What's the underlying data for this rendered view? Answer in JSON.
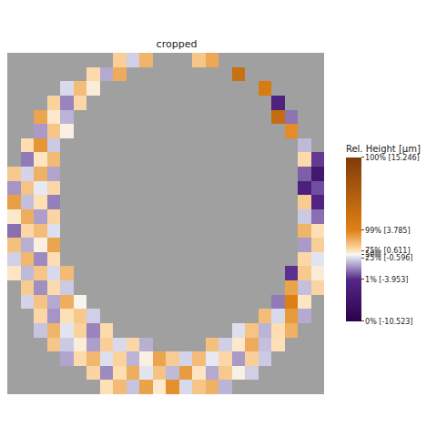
{
  "chart_data": {
    "type": "heatmap",
    "title": "cropped",
    "tick_labels": false,
    "grid": false,
    "xlim": [
      -0.5,
      23.5
    ],
    "ylim": [
      23.5,
      -0.5
    ],
    "cells": [
      [
        null,
        null,
        null,
        null,
        null,
        null,
        null,
        null,
        1.2,
        -0.8,
        2.1,
        null,
        null,
        null,
        1.5,
        2.5,
        null,
        null,
        null,
        null,
        null,
        null,
        null,
        null
      ],
      [
        null,
        null,
        null,
        null,
        null,
        null,
        0.8,
        -1.5,
        2.4,
        null,
        null,
        null,
        null,
        null,
        null,
        null,
        null,
        6.5,
        null,
        null,
        null,
        null,
        null,
        null
      ],
      [
        null,
        null,
        null,
        null,
        -0.6,
        1.8,
        0.3,
        null,
        null,
        null,
        null,
        null,
        null,
        null,
        null,
        null,
        null,
        null,
        null,
        4.8,
        null,
        null,
        null,
        null
      ],
      [
        null,
        null,
        null,
        1.1,
        -2.2,
        0.9,
        null,
        null,
        null,
        null,
        null,
        null,
        null,
        null,
        null,
        null,
        null,
        null,
        null,
        null,
        -4.8,
        null,
        null,
        null
      ],
      [
        null,
        null,
        2.6,
        0.4,
        -1.3,
        null,
        null,
        null,
        null,
        null,
        null,
        null,
        null,
        null,
        null,
        null,
        null,
        null,
        null,
        null,
        7.2,
        -2.5,
        null,
        null
      ],
      [
        null,
        null,
        -1.8,
        1.5,
        0.2,
        null,
        null,
        null,
        null,
        null,
        null,
        null,
        null,
        null,
        null,
        null,
        null,
        null,
        null,
        null,
        null,
        3.4,
        null,
        null
      ],
      [
        null,
        0.7,
        3.1,
        -0.9,
        null,
        null,
        null,
        null,
        null,
        null,
        null,
        null,
        null,
        null,
        null,
        null,
        null,
        null,
        null,
        null,
        null,
        null,
        -1.2,
        null
      ],
      [
        null,
        -2.4,
        0.5,
        1.9,
        null,
        null,
        null,
        null,
        null,
        null,
        null,
        null,
        null,
        null,
        null,
        null,
        null,
        null,
        null,
        null,
        null,
        null,
        0.8,
        -3.6
      ],
      [
        1.4,
        -0.7,
        2.2,
        -1.6,
        null,
        null,
        null,
        null,
        null,
        null,
        null,
        null,
        null,
        null,
        null,
        null,
        null,
        null,
        null,
        null,
        null,
        null,
        -2.9,
        -6.5
      ],
      [
        -1.9,
        1.6,
        -0.3,
        0.9,
        null,
        null,
        null,
        null,
        null,
        null,
        null,
        null,
        null,
        null,
        null,
        null,
        null,
        null,
        null,
        null,
        null,
        null,
        -5.1,
        -3.2
      ],
      [
        2.8,
        -1.1,
        0.6,
        -2.3,
        null,
        null,
        null,
        null,
        null,
        null,
        null,
        null,
        null,
        null,
        null,
        null,
        null,
        null,
        null,
        null,
        null,
        null,
        1.3,
        -4.4
      ],
      [
        0.4,
        2.3,
        -1.7,
        1.0,
        null,
        null,
        null,
        null,
        null,
        null,
        null,
        null,
        null,
        null,
        null,
        null,
        null,
        null,
        null,
        null,
        null,
        null,
        -0.9,
        -2.6
      ],
      [
        -2.6,
        0.9,
        1.8,
        -0.5,
        null,
        null,
        null,
        null,
        null,
        null,
        null,
        null,
        null,
        null,
        null,
        null,
        null,
        null,
        null,
        null,
        null,
        null,
        2.1,
        0.6
      ],
      [
        1.7,
        -1.4,
        0.2,
        2.6,
        null,
        null,
        null,
        null,
        null,
        null,
        null,
        null,
        null,
        null,
        null,
        null,
        null,
        null,
        null,
        null,
        null,
        null,
        -1.8,
        1.2
      ],
      [
        -0.8,
        2.0,
        -2.1,
        0.7,
        null,
        null,
        null,
        null,
        null,
        null,
        null,
        null,
        null,
        null,
        null,
        null,
        null,
        null,
        null,
        null,
        null,
        null,
        0.9,
        -0.4
      ],
      [
        0.5,
        -1.2,
        1.5,
        -0.6,
        1.9,
        null,
        null,
        null,
        null,
        null,
        null,
        null,
        null,
        null,
        null,
        null,
        null,
        null,
        null,
        null,
        null,
        -3.8,
        1.4,
        0.3
      ],
      [
        null,
        1.3,
        -2.0,
        0.8,
        -0.9,
        null,
        null,
        null,
        null,
        null,
        null,
        null,
        null,
        null,
        null,
        null,
        null,
        null,
        null,
        null,
        null,
        2.7,
        -1.1,
        1.0
      ],
      [
        null,
        -0.7,
        1.6,
        -1.5,
        2.3,
        0.1,
        null,
        null,
        null,
        null,
        null,
        null,
        null,
        null,
        null,
        null,
        null,
        null,
        null,
        null,
        -2.4,
        4.2,
        0.5,
        null
      ],
      [
        null,
        null,
        0.9,
        -1.9,
        0.6,
        1.4,
        -0.8,
        null,
        null,
        null,
        null,
        null,
        null,
        null,
        null,
        null,
        null,
        null,
        null,
        1.8,
        -0.6,
        3.0,
        -1.5,
        null
      ],
      [
        null,
        null,
        -1.0,
        2.1,
        -0.4,
        1.1,
        -2.2,
        0.8,
        null,
        null,
        null,
        null,
        null,
        null,
        null,
        null,
        null,
        -0.5,
        1.6,
        -1.3,
        0.7,
        2.2,
        null,
        null
      ],
      [
        null,
        null,
        null,
        1.5,
        -0.9,
        0.3,
        -1.7,
        1.2,
        -0.6,
        0.9,
        -1.4,
        null,
        null,
        null,
        null,
        1.7,
        -0.8,
        0.4,
        2.4,
        -1.1,
        0.6,
        null,
        null,
        null
      ],
      [
        null,
        null,
        null,
        null,
        -1.6,
        0.8,
        2.0,
        -0.5,
        1.1,
        -1.3,
        0.2,
        2.6,
        1.3,
        -0.7,
        1.8,
        -0.3,
        0.9,
        -1.8,
        1.2,
        -0.9,
        null,
        null,
        null,
        null
      ],
      [
        null,
        null,
        null,
        null,
        null,
        null,
        1.0,
        -2.1,
        0.7,
        2.3,
        -0.4,
        1.6,
        -1.2,
        2.9,
        0.5,
        -1.5,
        1.4,
        0.2,
        -0.8,
        null,
        null,
        null,
        null,
        null
      ],
      [
        null,
        null,
        null,
        null,
        null,
        null,
        null,
        0.6,
        1.9,
        -1.0,
        2.7,
        0.4,
        3.3,
        -0.6,
        1.5,
        2.2,
        -1.3,
        null,
        null,
        null,
        null,
        null,
        null,
        null
      ]
    ],
    "colorbar": {
      "title": "Rel. Height [µm]",
      "range": [
        -10.523,
        15.246
      ],
      "ticks": [
        {
          "value": -10.523,
          "label": "0% [-10.523]"
        },
        {
          "value": -3.953,
          "label": "1% [-3.953]"
        },
        {
          "value": -0.596,
          "label": "25% [-0.596]"
        },
        {
          "value": 0,
          "label": "50%"
        },
        {
          "value": 0.611,
          "label": "75% [0.611]"
        },
        {
          "value": 3.785,
          "label": "99% [3.785]"
        },
        {
          "value": 15.246,
          "label": "100% [15.246]"
        }
      ],
      "colors": [
        "#2d004b",
        "#542788",
        "#d8daeb",
        "#f7f7f7",
        "#fee0b6",
        "#e08214",
        "#7f3b08"
      ]
    }
  }
}
